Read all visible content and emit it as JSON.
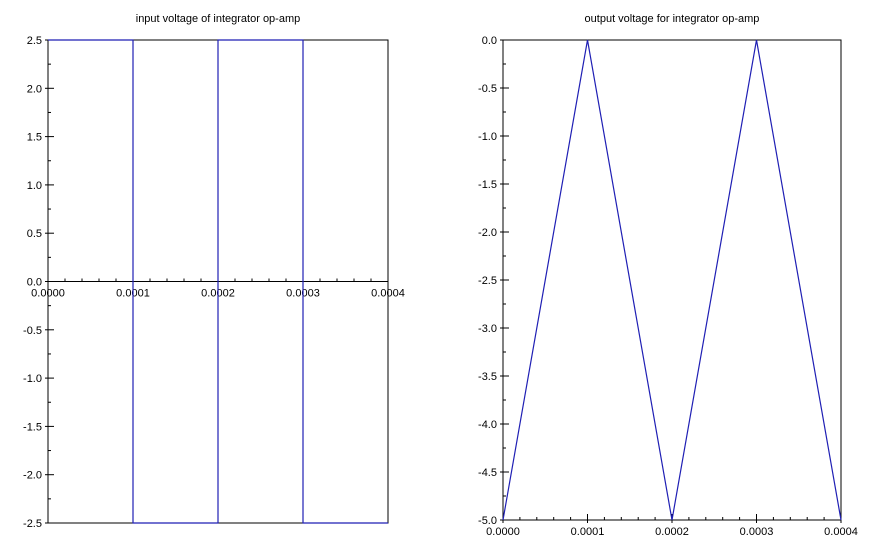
{
  "chart_data": [
    {
      "type": "line",
      "title": "input voltage of integrator op-amp",
      "xlabel": "",
      "ylabel": "",
      "xlim": [
        0,
        0.0004
      ],
      "ylim": [
        -2.5,
        2.5
      ],
      "x_axis_at_y": 0,
      "xticks": [
        0,
        0.0001,
        0.0002,
        0.0003,
        0.0004
      ],
      "xtick_labels": [
        "0.0000",
        "0.0001",
        "0.0002",
        "0.0003",
        "0.0004"
      ],
      "yticks": [
        2.5,
        2.0,
        1.5,
        1.0,
        0.5,
        0.0,
        -0.5,
        -1.0,
        -1.5,
        -2.0,
        -2.5
      ],
      "ytick_labels": [
        "2.5",
        "2.0",
        "1.5",
        "1.0",
        "0.5",
        "0.0",
        "-0.5",
        "-1.0",
        "-1.5",
        "-2.0",
        "-2.5"
      ],
      "grid": false,
      "color": "#1f1fb4",
      "series": [
        {
          "x": [
            0,
            0.0001,
            0.0001,
            0.0002,
            0.0002,
            0.0003,
            0.0003,
            0.0004
          ],
          "y": [
            2.5,
            2.5,
            -2.5,
            -2.5,
            2.5,
            2.5,
            -2.5,
            -2.5
          ]
        }
      ]
    },
    {
      "type": "line",
      "title": "output voltage for integrator op-amp",
      "xlabel": "",
      "ylabel": "",
      "xlim": [
        0,
        0.0004
      ],
      "ylim": [
        -5.0,
        0.0
      ],
      "xticks": [
        0,
        0.0001,
        0.0002,
        0.0003,
        0.0004
      ],
      "xtick_labels": [
        "0.0000",
        "0.0001",
        "0.0002",
        "0.0003",
        "0.0004"
      ],
      "yticks": [
        0.0,
        -0.5,
        -1.0,
        -1.5,
        -2.0,
        -2.5,
        -3.0,
        -3.5,
        -4.0,
        -4.5,
        -5.0
      ],
      "ytick_labels": [
        "0.0",
        "-0.5",
        "-1.0",
        "-1.5",
        "-2.0",
        "-2.5",
        "-3.0",
        "-3.5",
        "-4.0",
        "-4.5",
        "-5.0"
      ],
      "grid": false,
      "color": "#1f1fb4",
      "series": [
        {
          "x": [
            0,
            0.0001,
            0.0002,
            0.0003,
            0.0004
          ],
          "y": [
            -5.0,
            0.0,
            -5.0,
            0.0,
            -5.0
          ]
        }
      ]
    }
  ]
}
